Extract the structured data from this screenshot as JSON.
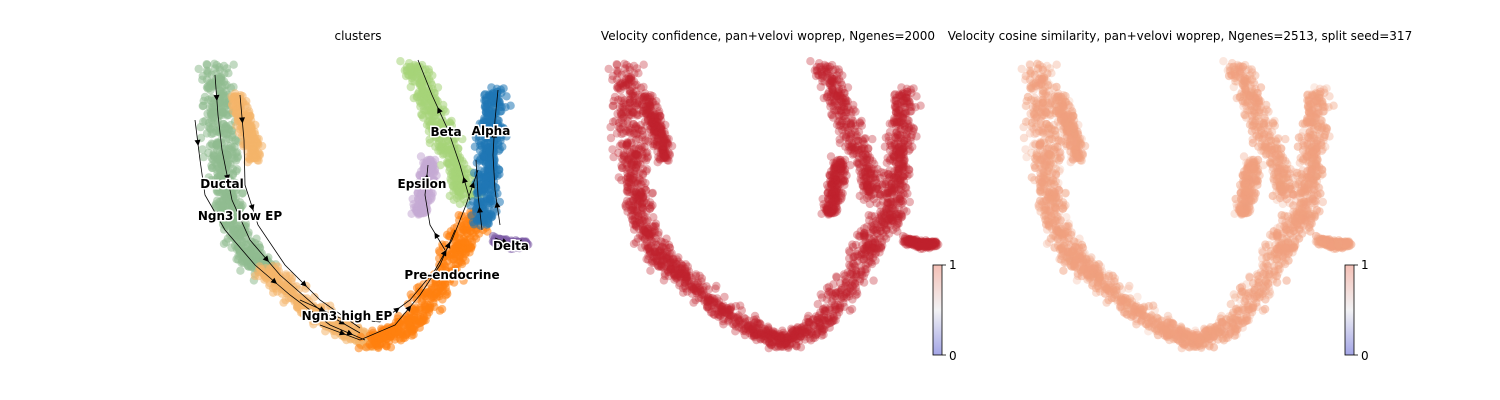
{
  "chart_data": [
    {
      "type": "scatter",
      "title": "clusters",
      "clusters": [
        {
          "name": "Ductal",
          "color": "#8fbc8f"
        },
        {
          "name": "Ngn3 low EP",
          "color": "#8fbc8f"
        },
        {
          "name": "Ngn3 high EP",
          "color": "#f4b46a"
        },
        {
          "name": "Pre-endocrine",
          "color": "#ff7f0e"
        },
        {
          "name": "Beta",
          "color": "#a6d479"
        },
        {
          "name": "Alpha",
          "color": "#1f77b4"
        },
        {
          "name": "Epsilon",
          "color": "#c5a9d4"
        },
        {
          "name": "Delta",
          "color": "#7f5fa8"
        }
      ],
      "stream_arrows": true,
      "axes": "off"
    },
    {
      "type": "scatter",
      "title": "Velocity confidence, pan+velovi woprep, Ngenes=2000",
      "point_color": "#c0222e",
      "colorbar": {
        "ticks": [
          "0",
          "1"
        ],
        "low_color": "#a3a5e6",
        "high_color": "#f4c0b6"
      },
      "axes": "off"
    },
    {
      "type": "scatter",
      "title": "Velocity cosine similarity, pan+velovi woprep, Ngenes=2513, split seed=317",
      "point_color": "#f0a07f",
      "colorbar": {
        "ticks": [
          "0",
          "1"
        ],
        "low_color": "#a3a5e6",
        "high_color": "#f4c0b6"
      },
      "axes": "off"
    }
  ]
}
